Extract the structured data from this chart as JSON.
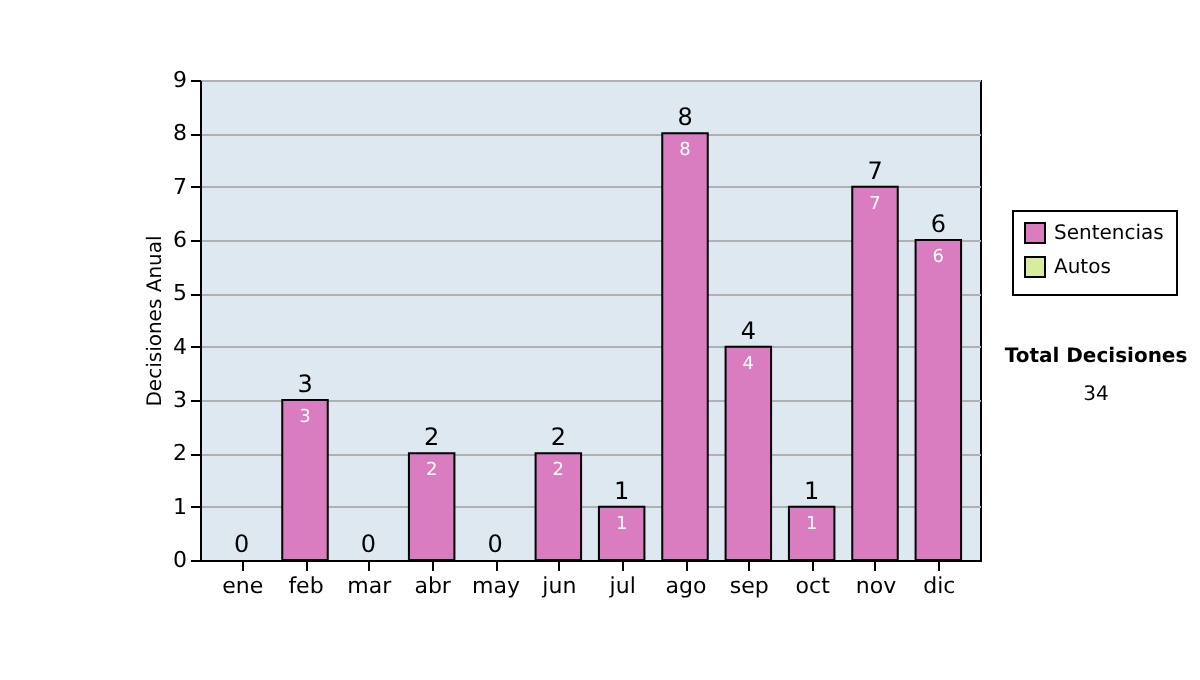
{
  "chart_data": {
    "type": "bar",
    "stacked": true,
    "ylabel": "Decisiones Anual",
    "categories": [
      "ene",
      "feb",
      "mar",
      "abr",
      "may",
      "jun",
      "jul",
      "ago",
      "sep",
      "oct",
      "nov",
      "dic"
    ],
    "series": [
      {
        "name": "Sentencias",
        "color": "#d97cc0",
        "values": [
          0,
          3,
          0,
          2,
          0,
          2,
          1,
          8,
          4,
          1,
          7,
          6
        ],
        "value_labels": [
          null,
          "3",
          null,
          "2",
          null,
          "2",
          "1",
          "8",
          "4",
          "1",
          "7",
          "6"
        ]
      },
      {
        "name": "Autos",
        "color": "#d8eca0",
        "values": [
          0,
          0,
          0,
          0,
          0,
          0,
          0,
          0,
          0,
          0,
          0,
          0
        ]
      }
    ],
    "totals": [
      "0",
      "3",
      "0",
      "2",
      "0",
      "2",
      "1",
      "8",
      "4",
      "1",
      "7",
      "6"
    ],
    "ylim": [
      0,
      9
    ],
    "yticks": [
      0,
      1,
      2,
      3,
      4,
      5,
      6,
      7,
      8,
      9
    ],
    "grid": "y",
    "legend": "right",
    "annotations": [
      "Total Decisiones",
      "34"
    ]
  }
}
